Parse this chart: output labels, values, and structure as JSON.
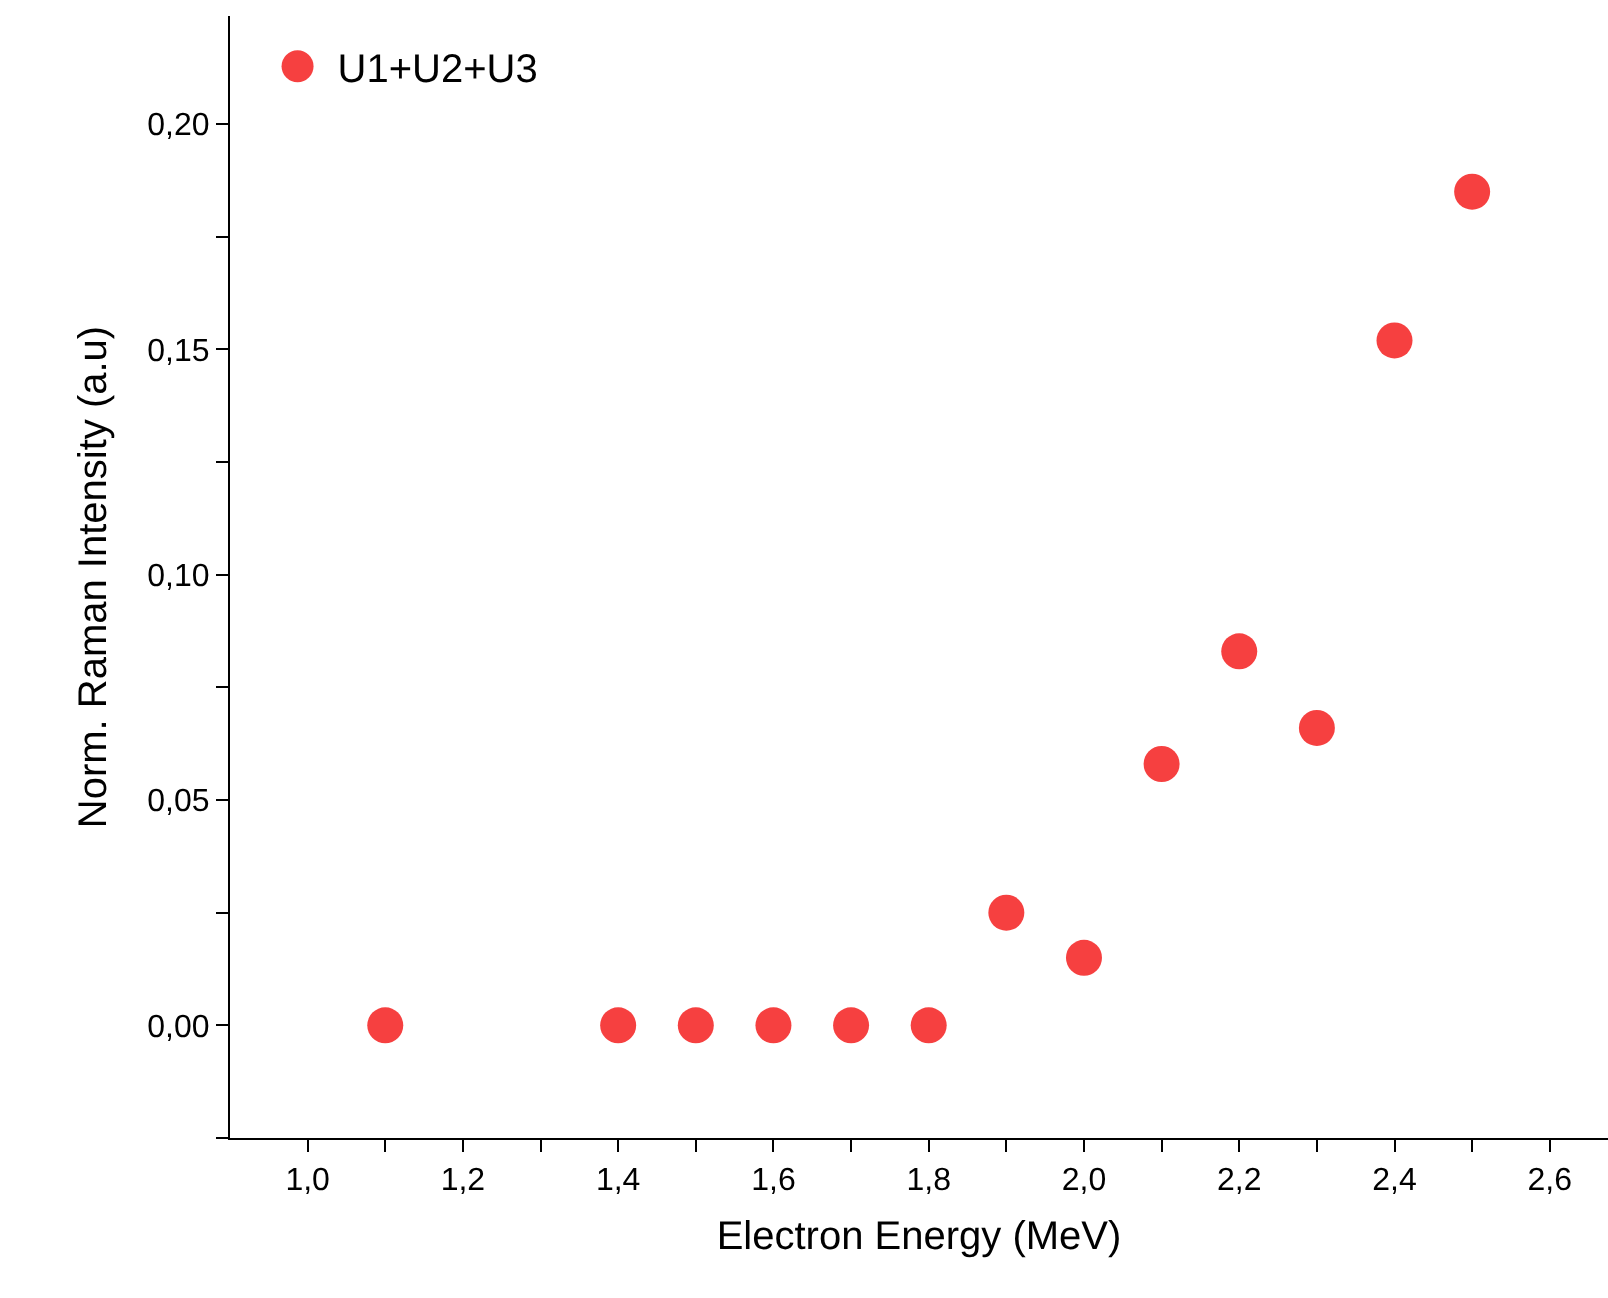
{
  "chart_data": {
    "type": "scatter",
    "xlabel": "Electron Energy (MeV)",
    "ylabel": "Norm. Raman Intensity (a.u)",
    "x": [
      1.1,
      1.4,
      1.5,
      1.6,
      1.7,
      1.8,
      1.9,
      2.0,
      2.1,
      2.2,
      2.3,
      2.4,
      2.5
    ],
    "series": [
      {
        "name": "U1+U2+U3",
        "color": "#f64040",
        "values": [
          0,
          0,
          0,
          0,
          0,
          0,
          0.025,
          0.015,
          0.058,
          0.083,
          0.066,
          0.152,
          0.185
        ]
      }
    ],
    "xlim": [
      0.9,
      2.675
    ],
    "ylim": [
      -0.025,
      0.224
    ],
    "xticks": [
      {
        "value": 1.0,
        "label": "1,0"
      },
      {
        "value": 1.1,
        "label": null
      },
      {
        "value": 1.2,
        "label": "1,2"
      },
      {
        "value": 1.3,
        "label": null
      },
      {
        "value": 1.4,
        "label": "1,4"
      },
      {
        "value": 1.5,
        "label": null
      },
      {
        "value": 1.6,
        "label": "1,6"
      },
      {
        "value": 1.7,
        "label": null
      },
      {
        "value": 1.8,
        "label": "1,8"
      },
      {
        "value": 1.9,
        "label": null
      },
      {
        "value": 2.0,
        "label": "2,0"
      },
      {
        "value": 2.1,
        "label": null
      },
      {
        "value": 2.2,
        "label": "2,2"
      },
      {
        "value": 2.3,
        "label": null
      },
      {
        "value": 2.4,
        "label": "2,4"
      },
      {
        "value": 2.5,
        "label": null
      },
      {
        "value": 2.6,
        "label": "2,6"
      }
    ],
    "yticks": [
      {
        "value": -0.025,
        "label": null
      },
      {
        "value": 0,
        "label": "0,00"
      },
      {
        "value": 0.025,
        "label": null
      },
      {
        "value": 0.05,
        "label": "0,05"
      },
      {
        "value": 0.075,
        "label": null
      },
      {
        "value": 0.1,
        "label": "0,10"
      },
      {
        "value": 0.125,
        "label": null
      },
      {
        "value": 0.15,
        "label": "0,15"
      },
      {
        "value": 0.175,
        "label": null
      },
      {
        "value": 0.2,
        "label": "0,20"
      }
    ],
    "marker": "circle",
    "legend": "top left",
    "grid": false
  }
}
